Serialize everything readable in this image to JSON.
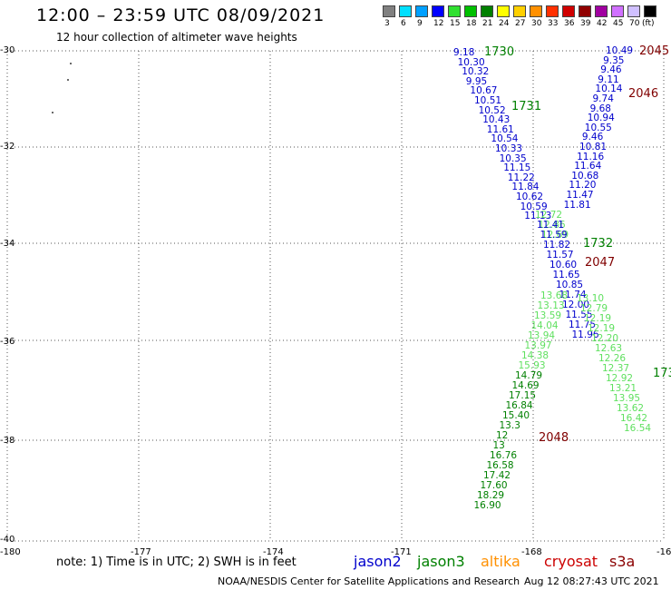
{
  "header": {
    "title": "12:00 – 23:59 UTC 08/09/2021",
    "subtitle": "12 hour collection of altimeter wave heights"
  },
  "legend": {
    "colors": [
      "#808080",
      "#00e0ff",
      "#00a0ff",
      "#0000ff",
      "#30e030",
      "#00c000",
      "#008000",
      "#ffff00",
      "#ffd000",
      "#ff9000",
      "#ff3000",
      "#d00000",
      "#900000",
      "#a000a0",
      "#d070ff",
      "#d0c0ff",
      "#000000"
    ],
    "labels": [
      "3",
      "6",
      "9",
      "12",
      "15",
      "18",
      "21",
      "24",
      "27",
      "30",
      "33",
      "36",
      "39",
      "42",
      "45",
      "70",
      "(ft)"
    ]
  },
  "axes": {
    "lon_labels": [
      "-180",
      "-177",
      "-174",
      "-171",
      "-168",
      "-16"
    ],
    "lat_labels": [
      "-30",
      "-32",
      "-34",
      "-36",
      "-38",
      "-40"
    ]
  },
  "tracks": {
    "jason2_a": [
      "9.18",
      "10.30",
      "10.32",
      "9.95",
      "10.67",
      "10.51",
      "10.52",
      "10.43",
      "11.61",
      "10.54",
      "10.33",
      "10.35",
      "11.15",
      "11.22",
      "11.84",
      "10.62",
      "10.59",
      "11.13"
    ],
    "jason3_a": [
      "12.72",
      "12.86",
      "12.69"
    ],
    "jason2_b": [
      "10.49",
      "9.35",
      "9.46",
      "9.11",
      "10.14",
      "9.74",
      "9.68",
      "10.94",
      "10.55",
      "9.46",
      "10.81",
      "11.16",
      "11.64",
      "10.68",
      "11.20",
      "11.47",
      "11.81"
    ],
    "mid": [
      "11.41",
      "11.59",
      "11.82",
      "11.57",
      "10.60",
      "11.65",
      "10.85",
      "11.74",
      "12.00",
      "11.55",
      "11.75",
      "11.96"
    ],
    "jason3_light_a": [
      "13.68",
      "13.10",
      "13.13",
      "12.79",
      "13.59",
      "12.19",
      "14.04",
      "12.19",
      "13.94",
      "12.20",
      "13.97",
      "12.63",
      "14.38",
      "12.26",
      "15.93",
      "12.37",
      "14.79",
      "12.92",
      "14.69",
      "13.21",
      "17.15",
      "13.95",
      "16.84",
      "13.62",
      "15.40",
      "13.3",
      "16.42",
      "12",
      "16.54",
      "13",
      "16.76",
      "16.58",
      "17.42",
      "17.60",
      "18.29",
      "16.90"
    ]
  },
  "time_labels": {
    "t1730": "1730",
    "t1731": "1731",
    "t1732": "1732",
    "t1733": "173",
    "t2045": "2045",
    "t2046": "2046",
    "t2047": "2047",
    "t2048": "2048"
  },
  "footer": {
    "note": "note:  1) Time is in UTC;  2) SWH is in feet",
    "sats": {
      "jason2": "jason2",
      "jason3": "jason3",
      "altika": "altika",
      "cryosat": "cryosat",
      "s3a": "s3a"
    },
    "credit": "NOAA/NESDIS Center for Satellite Applications and Research",
    "stamp": "Aug 12 08:27:43 UTC 2021"
  },
  "colors": {
    "jason2": "#0000cc",
    "jason3": "#008000",
    "jason3_light": "#60e060",
    "altika": "#ff9000",
    "cryosat": "#cc0000",
    "s3a": "#8b0000",
    "time_dark": "#800000"
  }
}
